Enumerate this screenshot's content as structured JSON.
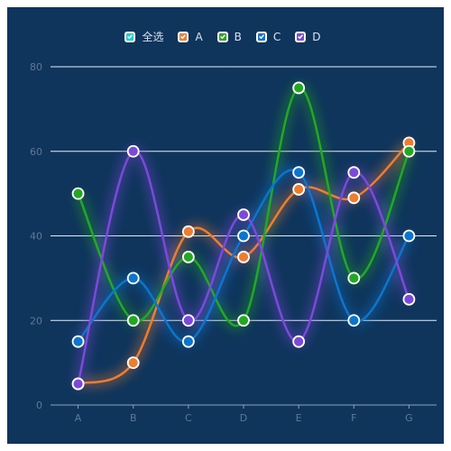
{
  "legend": {
    "select_all": {
      "label": "全选",
      "color": "#1ad1d6"
    },
    "items": [
      {
        "label": "A",
        "color": "#ed7d31"
      },
      {
        "label": "B",
        "color": "#23a824"
      },
      {
        "label": "C",
        "color": "#0c75cc"
      },
      {
        "label": "D",
        "color": "#7b4ad9"
      }
    ]
  },
  "chart_data": {
    "type": "line",
    "smooth": true,
    "categories": [
      "A",
      "B",
      "C",
      "D",
      "E",
      "F",
      "G"
    ],
    "ylim": [
      0,
      80
    ],
    "yticks": [
      0,
      20,
      40,
      60,
      80
    ],
    "grid": true,
    "legend_position": "top-center",
    "background": "#0f355c",
    "series": [
      {
        "name": "A",
        "color": "#ed7d31",
        "values": [
          5,
          10,
          41,
          35,
          51,
          49,
          62
        ]
      },
      {
        "name": "B",
        "color": "#23a824",
        "values": [
          50,
          20,
          35,
          20,
          75,
          30,
          60
        ]
      },
      {
        "name": "C",
        "color": "#0c75cc",
        "values": [
          15,
          30,
          15,
          40,
          55,
          20,
          40
        ]
      },
      {
        "name": "D",
        "color": "#7b4ad9",
        "values": [
          5,
          60,
          20,
          45,
          15,
          55,
          25
        ]
      }
    ]
  }
}
